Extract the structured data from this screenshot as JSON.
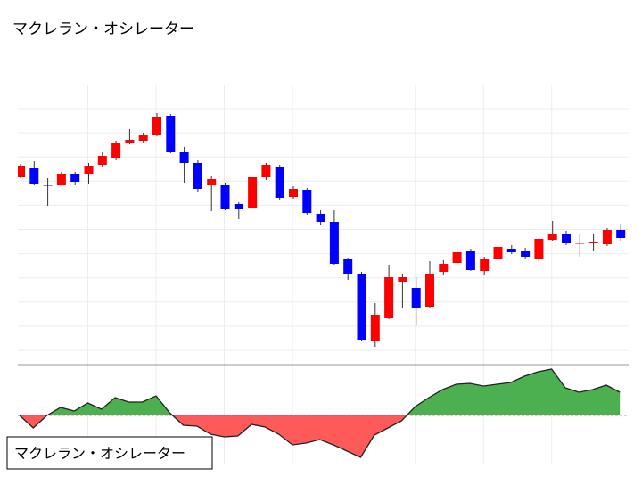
{
  "chart_data": [
    {
      "type": "candlestick",
      "title": "マクレラン・オシレーター",
      "open": [
        221,
        232,
        213,
        213,
        225,
        225,
        235,
        243,
        260,
        262,
        269,
        290,
        249,
        237,
        213,
        213,
        191,
        187,
        221,
        233,
        199,
        207,
        180,
        171,
        129,
        113,
        37,
        63,
        104,
        97,
        76,
        115,
        125,
        138,
        116,
        130,
        141,
        139,
        129,
        151,
        157,
        147,
        148,
        146,
        162
      ],
      "high": [
        236,
        239,
        220,
        227,
        227,
        237,
        250,
        262,
        275,
        271,
        293,
        292,
        255,
        240,
        223,
        215,
        193,
        222,
        237,
        235,
        211,
        209,
        184,
        185,
        131,
        115,
        80,
        123,
        113,
        109,
        127,
        128,
        142,
        141,
        132,
        146,
        145,
        142,
        153,
        172,
        161,
        157,
        157,
        164,
        169
      ],
      "low": [
        220,
        213,
        189,
        212,
        213,
        214,
        233,
        240,
        258,
        260,
        267,
        248,
        215,
        205,
        183,
        184,
        174,
        187,
        218,
        196,
        197,
        179,
        168,
        123,
        106,
        38,
        31,
        62,
        74,
        55,
        74,
        112,
        123,
        116,
        111,
        128,
        135,
        130,
        126,
        150,
        145,
        132,
        138,
        144,
        150
      ],
      "close": [
        234,
        214,
        212,
        225,
        216,
        234,
        245,
        260,
        263,
        269,
        289,
        250,
        237,
        208,
        219,
        186,
        186,
        221,
        235,
        198,
        208,
        181,
        171,
        124,
        113,
        39,
        67,
        109,
        109,
        74,
        113,
        124,
        137,
        117,
        130,
        143,
        137,
        132,
        152,
        158,
        147,
        148,
        149,
        162,
        153
      ],
      "up_color": "#ff0000",
      "down_color": "#0000ff",
      "ylim": [
        10,
        325
      ]
    },
    {
      "type": "area",
      "title": "マクレラン・オシレーター",
      "values": [
        0,
        -14,
        0,
        9,
        5,
        14,
        7,
        20,
        15,
        15,
        22,
        3,
        -11,
        -12,
        -21,
        -24,
        -23,
        -10,
        -13,
        -21,
        -33,
        -31,
        -27,
        -33,
        -40,
        -47,
        -22,
        -14,
        -6,
        10,
        20,
        29,
        35,
        36,
        33,
        35,
        37,
        44,
        49,
        52,
        31,
        26,
        29,
        34,
        26
      ],
      "positive_color": "#4caf50",
      "negative_color": "#ff5a5a",
      "ylim": [
        -54,
        56
      ]
    }
  ]
}
